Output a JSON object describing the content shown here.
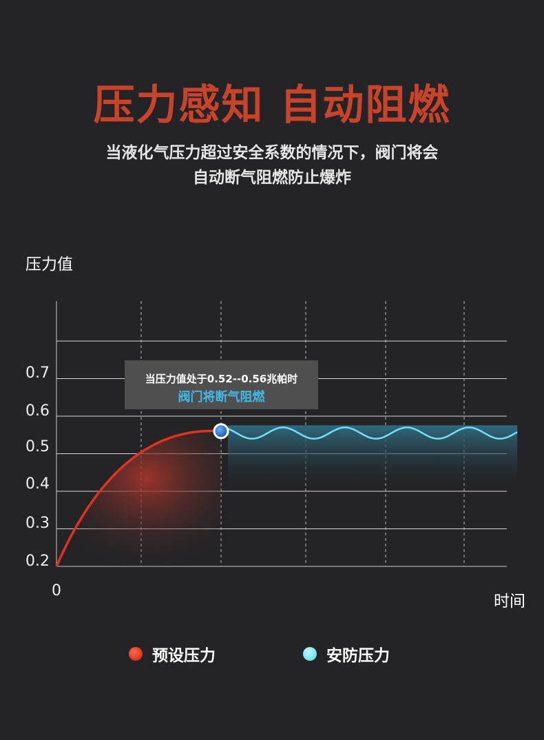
{
  "title": "压力感知 自动阻燃",
  "subtitle": [
    "当液化气压力超过安全系数的情况下，阀门将会",
    "自动断气阻燃防止爆炸"
  ],
  "colors": {
    "title": "#c8432a",
    "preset": "#e0321c",
    "safe": "#6fe0f0",
    "tooltip_accent": "#41b8e6"
  },
  "tooltip": {
    "line1": "当压力值处于0.52--0.56兆帕时",
    "line2": "阀门将断气阻燃"
  },
  "chart_data": {
    "type": "line",
    "ylabel": "压力值",
    "xlabel": "时间",
    "x_tick_labels": [
      "0"
    ],
    "y_ticks": [
      "0.2",
      "0.3",
      "0.4",
      "0.5",
      "0.6",
      "0.7"
    ],
    "ylim": [
      0.2,
      0.8
    ],
    "grid": true,
    "legend_position": "bottom",
    "series": [
      {
        "name": "预设压力",
        "color": "#e0321c",
        "points": [
          [
            0,
            0.2
          ],
          [
            0.5,
            0.36
          ],
          [
            1,
            0.47
          ],
          [
            1.5,
            0.53
          ],
          [
            2,
            0.56
          ]
        ]
      },
      {
        "name": "安防压力",
        "color": "#6fe0f0",
        "range": [
          0.54,
          0.57
        ],
        "x_range": [
          2,
          5.6
        ]
      }
    ]
  }
}
